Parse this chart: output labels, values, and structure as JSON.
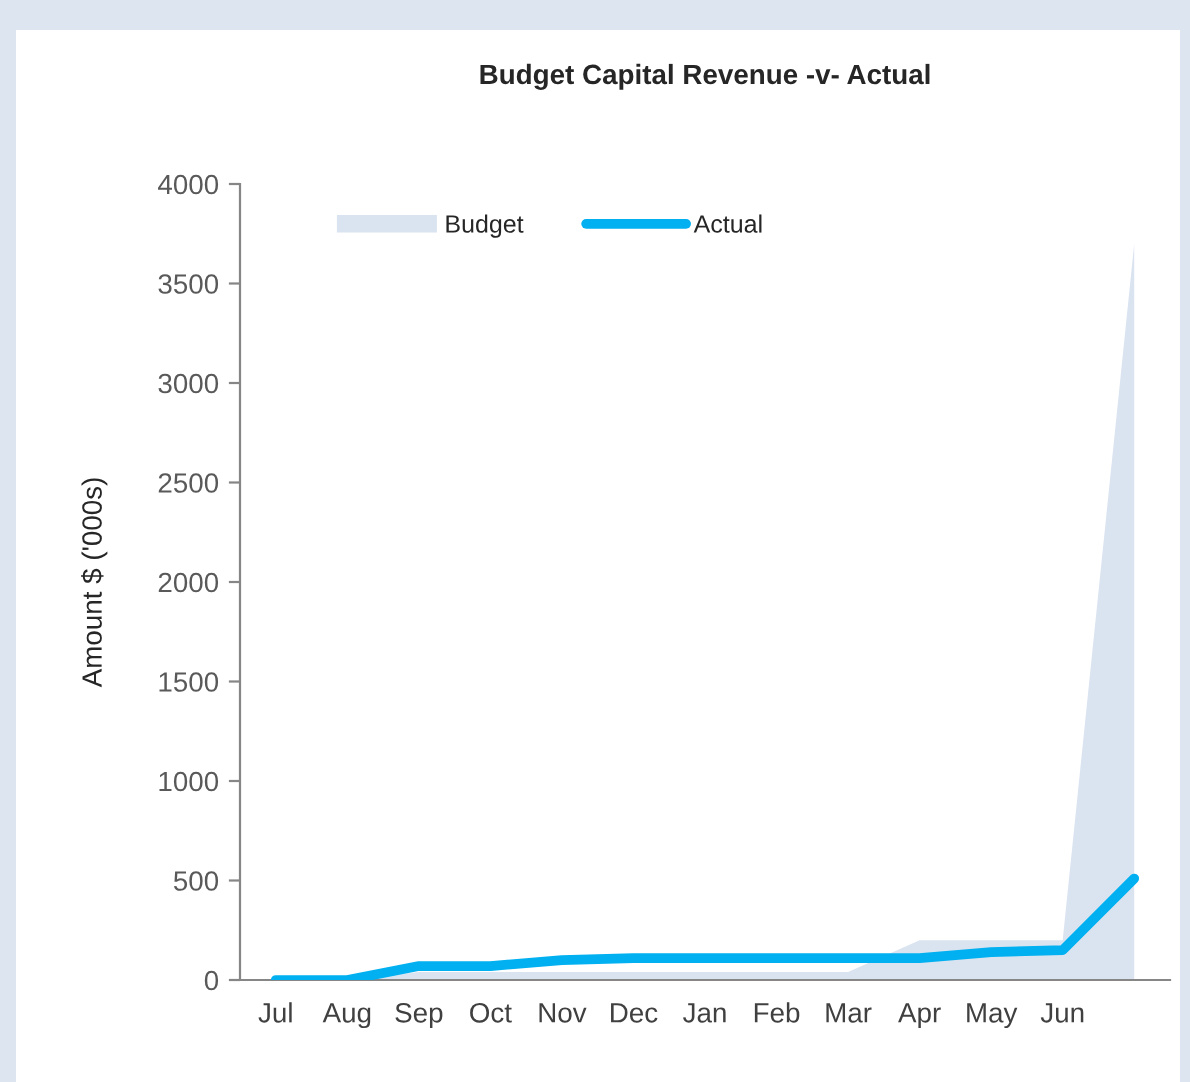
{
  "chart_data": {
    "type": "area",
    "title": "Budget Capital Revenue -v- Actual",
    "ylabel": "Amount $ ('000s)",
    "categories": [
      "Jul",
      "Aug",
      "Sep",
      "Oct",
      "Nov",
      "Dec",
      "Jan",
      "Feb",
      "Mar",
      "Apr",
      "May",
      "Jun",
      null
    ],
    "series": [
      {
        "name": "Budget",
        "color": "#dae3f0",
        "values": [
          0,
          0,
          40,
          40,
          40,
          40,
          40,
          40,
          40,
          200,
          200,
          200,
          3700
        ]
      },
      {
        "name": "Actual",
        "type": "line",
        "color": "#00b0f0",
        "values": [
          0,
          0,
          70,
          70,
          100,
          110,
          110,
          110,
          110,
          110,
          140,
          150,
          510
        ]
      }
    ],
    "ylim": [
      0,
      4000
    ],
    "yticks": [
      0,
      500,
      1000,
      1500,
      2000,
      2500,
      3000,
      3500,
      4000
    ],
    "grid": false,
    "legend": "top left",
    "marker": "none",
    "line_style": "solid"
  }
}
